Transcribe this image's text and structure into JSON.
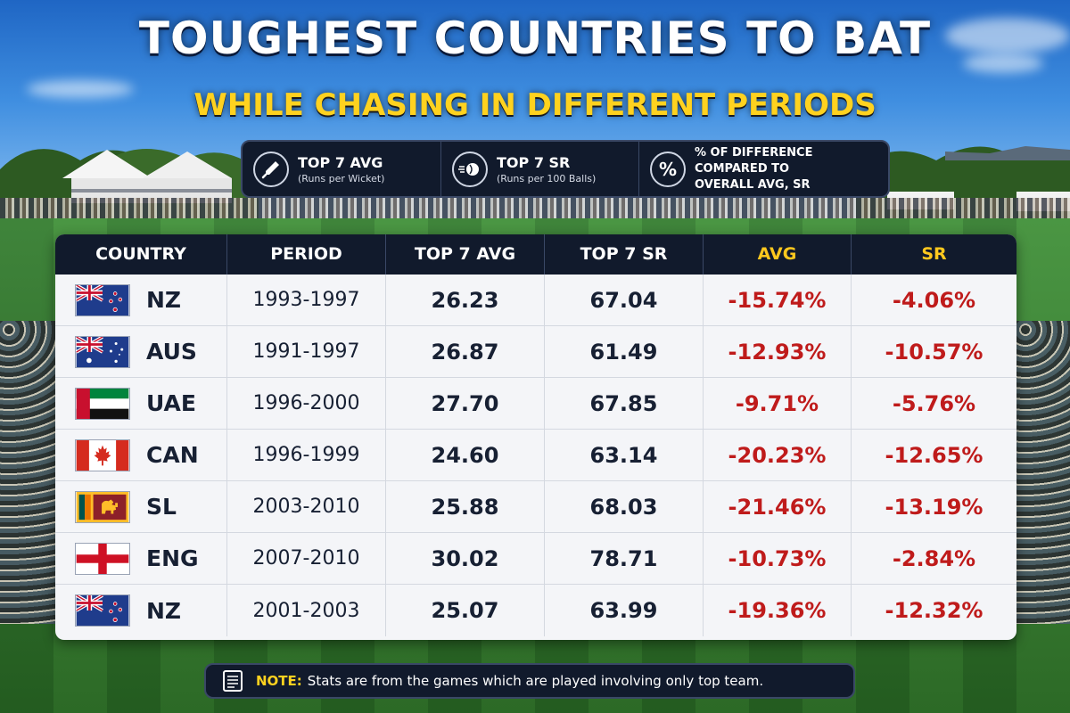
{
  "title": "TOUGHEST COUNTRIES TO BAT",
  "subtitle": "WHILE CHASING IN DIFFERENT PERIODS",
  "legend": {
    "avg": {
      "icon": "bat-icon",
      "label": "TOP 7 AVG",
      "sub": "(Runs per Wicket)"
    },
    "sr": {
      "icon": "ball-icon",
      "label": "TOP 7 SR",
      "sub": "(Runs per 100 Balls)"
    },
    "pct": {
      "icon": "percent-icon",
      "symbol": "%",
      "line1": "% OF DIFFERENCE COMPARED TO",
      "line2": "OVERALL AVG, SR"
    }
  },
  "table": {
    "headers": [
      "COUNTRY",
      "PERIOD",
      "TOP 7 AVG",
      "TOP 7 SR",
      "AVG",
      "SR"
    ],
    "rows": [
      {
        "flag": "nz-flag-icon",
        "country": "NZ",
        "period": "1993-1997",
        "avg": "26.23",
        "sr": "67.04",
        "avg_diff": "-15.74%",
        "sr_diff": "-4.06%"
      },
      {
        "flag": "aus-flag-icon",
        "country": "AUS",
        "period": "1991-1997",
        "avg": "26.87",
        "sr": "61.49",
        "avg_diff": "-12.93%",
        "sr_diff": "-10.57%"
      },
      {
        "flag": "uae-flag-icon",
        "country": "UAE",
        "period": "1996-2000",
        "avg": "27.70",
        "sr": "67.85",
        "avg_diff": "-9.71%",
        "sr_diff": "-5.76%"
      },
      {
        "flag": "can-flag-icon",
        "country": "CAN",
        "period": "1996-1999",
        "avg": "24.60",
        "sr": "63.14",
        "avg_diff": "-20.23%",
        "sr_diff": "-12.65%"
      },
      {
        "flag": "sl-flag-icon",
        "country": "SL",
        "period": "2003-2010",
        "avg": "25.88",
        "sr": "68.03",
        "avg_diff": "-21.46%",
        "sr_diff": "-13.19%"
      },
      {
        "flag": "eng-flag-icon",
        "country": "ENG",
        "period": "2007-2010",
        "avg": "30.02",
        "sr": "78.71",
        "avg_diff": "-10.73%",
        "sr_diff": "-2.84%"
      },
      {
        "flag": "nz-flag-icon",
        "country": "NZ",
        "period": "2001-2003",
        "avg": "25.07",
        "sr": "63.99",
        "avg_diff": "-19.36%",
        "sr_diff": "-12.32%"
      }
    ]
  },
  "note": {
    "icon": "notepad-icon",
    "label": "NOTE:",
    "text": "Stats are from the games which are played involving only top team."
  },
  "colors": {
    "header_bg": "#111a2c",
    "accent_yellow": "#ffd21f",
    "negative_red": "#bf1b1b",
    "text_dark": "#172033"
  }
}
